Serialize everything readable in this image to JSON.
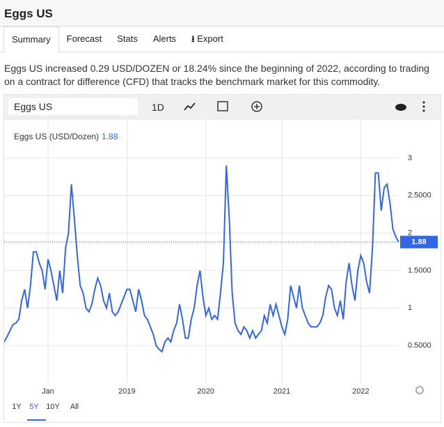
{
  "header": {
    "title": "Eggs US"
  },
  "tabs": [
    "Summary",
    "Forecast",
    "Stats",
    "Alerts",
    "Export"
  ],
  "description": "Eggs US increased 0.29 USD/DOZEN or 18.24% since the beginning of 2022, according to trading on a contract for difference (CFD) that tracks the benchmark market for this commodity.",
  "toolbar": {
    "symbol": "Eggs US",
    "interval": "1D"
  },
  "ranges": [
    "1Y",
    "5Y",
    "10Y",
    "All"
  ],
  "chart_data": {
    "type": "line",
    "title": "Eggs US (USD/Dozen)",
    "color": "#3366e6",
    "grid": true,
    "values": [
      0.55,
      0.62,
      0.7,
      0.78,
      0.8,
      0.85,
      1.1,
      1.25,
      1.0,
      1.3,
      1.75,
      1.75,
      1.6,
      1.5,
      1.25,
      1.65,
      1.5,
      1.3,
      1.1,
      1.5,
      1.2,
      1.8,
      2.0,
      2.65,
      2.2,
      1.7,
      1.3,
      1.2,
      1.0,
      0.95,
      1.05,
      1.25,
      1.4,
      1.3,
      1.1,
      1.0,
      1.2,
      0.95,
      0.9,
      0.95,
      1.05,
      1.15,
      1.25,
      1.25,
      1.1,
      0.95,
      1.25,
      1.1,
      0.9,
      0.85,
      0.75,
      0.65,
      0.5,
      0.45,
      0.42,
      0.55,
      0.6,
      0.55,
      0.7,
      0.8,
      1.05,
      0.85,
      0.6,
      0.6,
      0.85,
      1.0,
      1.3,
      1.5,
      1.15,
      0.9,
      1.0,
      0.85,
      0.9,
      0.85,
      1.2,
      1.6,
      2.9,
      2.2,
      1.2,
      0.8,
      0.7,
      0.65,
      0.75,
      0.7,
      0.6,
      0.7,
      0.6,
      0.65,
      0.7,
      0.9,
      0.8,
      1.05,
      0.9,
      1.05,
      0.9,
      0.75,
      0.65,
      0.85,
      1.3,
      1.15,
      1.0,
      1.3,
      1.0,
      0.9,
      0.8,
      0.75,
      0.75,
      0.75,
      0.8,
      0.9,
      1.15,
      1.3,
      1.25,
      1.0,
      0.9,
      1.1,
      0.85,
      1.35,
      1.6,
      1.3,
      1.1,
      1.5,
      1.7,
      1.6,
      1.35,
      1.2,
      1.8,
      2.8,
      2.8,
      2.3,
      2.6,
      2.65,
      2.4,
      2.05,
      1.95,
      1.88
    ],
    "xlim": [
      0,
      135
    ],
    "xticks": [
      {
        "value": 15,
        "label": "Jan"
      },
      {
        "value": 42,
        "label": "2019"
      },
      {
        "value": 69,
        "label": "2020"
      },
      {
        "value": 95,
        "label": "2021"
      },
      {
        "value": 122,
        "label": "2022"
      }
    ],
    "ylim": [
      0,
      3.5
    ],
    "yticks": [
      {
        "value": 0.5,
        "label": "0.5000"
      },
      1,
      {
        "value": 1.5,
        "label": "1.5000"
      },
      2,
      {
        "value": 2.5,
        "label": "2.5000"
      },
      3
    ]
  }
}
